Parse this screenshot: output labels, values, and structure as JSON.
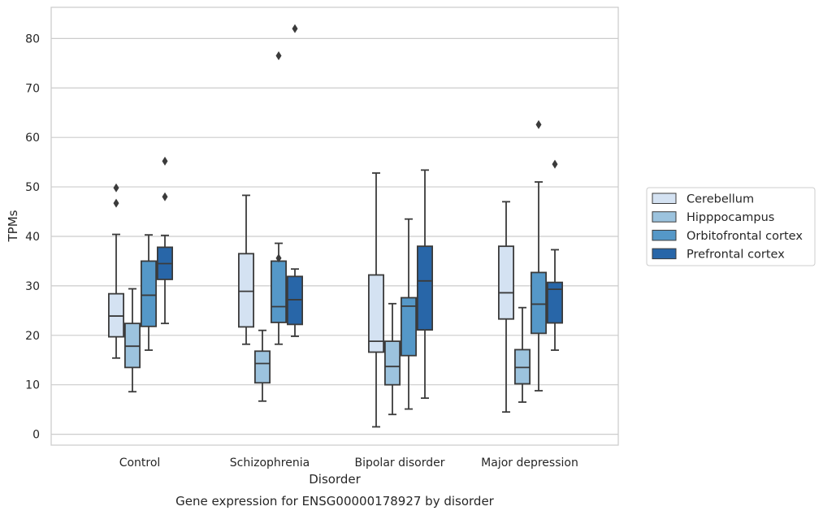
{
  "chart_data": {
    "type": "boxplot",
    "title": "Gene expression for ENSG00000178927 by disorder",
    "xlabel": "Disorder",
    "ylabel": "TPMs",
    "ylim": [
      -2.2,
      86.3
    ],
    "yticks": [
      0,
      10,
      20,
      30,
      40,
      50,
      60,
      70,
      80
    ],
    "grid": "horizontal",
    "legend_position": "right",
    "categories": [
      "Control",
      "Schizophrenia",
      "Bipolar disorder",
      "Major depression"
    ],
    "series": [
      {
        "name": "Cerebellum",
        "color": "#d4e2f2",
        "boxes": [
          {
            "whislo": 15.4,
            "q1": 19.7,
            "med": 23.9,
            "q3": 28.4,
            "whishi": 40.4,
            "fliers": [
              46.7,
              49.8
            ]
          },
          {
            "whislo": 18.2,
            "q1": 21.7,
            "med": 28.9,
            "q3": 36.5,
            "whishi": 48.3,
            "fliers": []
          },
          {
            "whislo": 1.5,
            "q1": 16.6,
            "med": 18.8,
            "q3": 32.2,
            "whishi": 52.8,
            "fliers": []
          },
          {
            "whislo": 4.5,
            "q1": 23.3,
            "med": 28.6,
            "q3": 38.0,
            "whishi": 47.0,
            "fliers": []
          }
        ]
      },
      {
        "name": "Hipppocampus",
        "color": "#9cc3de",
        "boxes": [
          {
            "whislo": 8.6,
            "q1": 13.5,
            "med": 17.8,
            "q3": 22.4,
            "whishi": 29.4,
            "fliers": []
          },
          {
            "whislo": 6.7,
            "q1": 10.4,
            "med": 14.3,
            "q3": 16.8,
            "whishi": 21.0,
            "fliers": []
          },
          {
            "whislo": 4.0,
            "q1": 10.0,
            "med": 13.7,
            "q3": 18.8,
            "whishi": 26.4,
            "fliers": []
          },
          {
            "whislo": 6.5,
            "q1": 10.2,
            "med": 13.5,
            "q3": 17.1,
            "whishi": 25.6,
            "fliers": []
          }
        ]
      },
      {
        "name": "Orbitofrontal cortex",
        "color": "#5598c8",
        "boxes": [
          {
            "whislo": 17.0,
            "q1": 21.8,
            "med": 28.1,
            "q3": 35.0,
            "whishi": 40.3,
            "fliers": []
          },
          {
            "whislo": 18.2,
            "q1": 22.6,
            "med": 25.8,
            "q3": 35.0,
            "whishi": 38.6,
            "fliers": [
              35.6,
              76.5
            ]
          },
          {
            "whislo": 5.1,
            "q1": 15.9,
            "med": 25.9,
            "q3": 27.6,
            "whishi": 43.5,
            "fliers": []
          },
          {
            "whislo": 8.8,
            "q1": 20.4,
            "med": 26.3,
            "q3": 32.7,
            "whishi": 51.0,
            "fliers": [
              62.6
            ]
          }
        ]
      },
      {
        "name": "Prefrontal cortex",
        "color": "#2866a8",
        "boxes": [
          {
            "whislo": 22.4,
            "q1": 31.3,
            "med": 34.5,
            "q3": 37.8,
            "whishi": 40.2,
            "fliers": [
              48.0,
              55.2
            ]
          },
          {
            "whislo": 19.8,
            "q1": 22.2,
            "med": 27.2,
            "q3": 31.9,
            "whishi": 33.4,
            "fliers": [
              82.0
            ]
          },
          {
            "whislo": 7.3,
            "q1": 21.1,
            "med": 31.0,
            "q3": 38.0,
            "whishi": 53.4,
            "fliers": []
          },
          {
            "whislo": 17.0,
            "q1": 22.5,
            "med": 29.3,
            "q3": 30.7,
            "whishi": 37.3,
            "fliers": [
              54.6
            ]
          }
        ]
      }
    ]
  }
}
